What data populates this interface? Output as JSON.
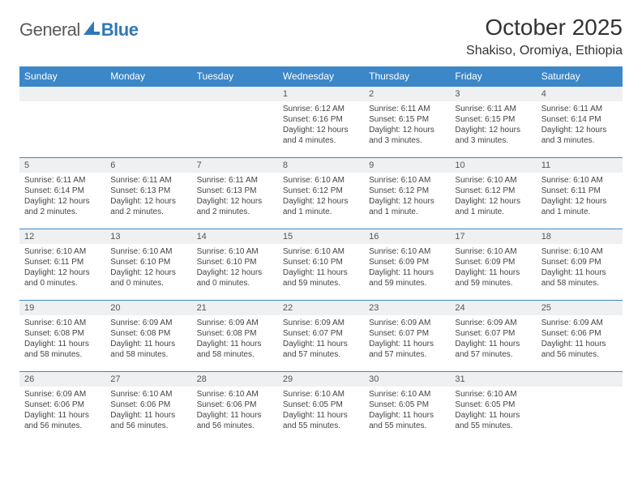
{
  "logo": {
    "part1": "General",
    "part2": "Blue",
    "brand_color": "#2f78b8"
  },
  "title": "October 2025",
  "location": "Shakiso, Oromiya, Ethiopia",
  "header_bg": "#3b87c8",
  "daynum_bg": "#eef0f2",
  "row_border": "#3b87c8",
  "weekdays": [
    "Sunday",
    "Monday",
    "Tuesday",
    "Wednesday",
    "Thursday",
    "Friday",
    "Saturday"
  ],
  "weeks": [
    [
      {
        "n": "",
        "sr": "",
        "ss": "",
        "dl": ""
      },
      {
        "n": "",
        "sr": "",
        "ss": "",
        "dl": ""
      },
      {
        "n": "",
        "sr": "",
        "ss": "",
        "dl": ""
      },
      {
        "n": "1",
        "sr": "Sunrise: 6:12 AM",
        "ss": "Sunset: 6:16 PM",
        "dl": "Daylight: 12 hours and 4 minutes."
      },
      {
        "n": "2",
        "sr": "Sunrise: 6:11 AM",
        "ss": "Sunset: 6:15 PM",
        "dl": "Daylight: 12 hours and 3 minutes."
      },
      {
        "n": "3",
        "sr": "Sunrise: 6:11 AM",
        "ss": "Sunset: 6:15 PM",
        "dl": "Daylight: 12 hours and 3 minutes."
      },
      {
        "n": "4",
        "sr": "Sunrise: 6:11 AM",
        "ss": "Sunset: 6:14 PM",
        "dl": "Daylight: 12 hours and 3 minutes."
      }
    ],
    [
      {
        "n": "5",
        "sr": "Sunrise: 6:11 AM",
        "ss": "Sunset: 6:14 PM",
        "dl": "Daylight: 12 hours and 2 minutes."
      },
      {
        "n": "6",
        "sr": "Sunrise: 6:11 AM",
        "ss": "Sunset: 6:13 PM",
        "dl": "Daylight: 12 hours and 2 minutes."
      },
      {
        "n": "7",
        "sr": "Sunrise: 6:11 AM",
        "ss": "Sunset: 6:13 PM",
        "dl": "Daylight: 12 hours and 2 minutes."
      },
      {
        "n": "8",
        "sr": "Sunrise: 6:10 AM",
        "ss": "Sunset: 6:12 PM",
        "dl": "Daylight: 12 hours and 1 minute."
      },
      {
        "n": "9",
        "sr": "Sunrise: 6:10 AM",
        "ss": "Sunset: 6:12 PM",
        "dl": "Daylight: 12 hours and 1 minute."
      },
      {
        "n": "10",
        "sr": "Sunrise: 6:10 AM",
        "ss": "Sunset: 6:12 PM",
        "dl": "Daylight: 12 hours and 1 minute."
      },
      {
        "n": "11",
        "sr": "Sunrise: 6:10 AM",
        "ss": "Sunset: 6:11 PM",
        "dl": "Daylight: 12 hours and 1 minute."
      }
    ],
    [
      {
        "n": "12",
        "sr": "Sunrise: 6:10 AM",
        "ss": "Sunset: 6:11 PM",
        "dl": "Daylight: 12 hours and 0 minutes."
      },
      {
        "n": "13",
        "sr": "Sunrise: 6:10 AM",
        "ss": "Sunset: 6:10 PM",
        "dl": "Daylight: 12 hours and 0 minutes."
      },
      {
        "n": "14",
        "sr": "Sunrise: 6:10 AM",
        "ss": "Sunset: 6:10 PM",
        "dl": "Daylight: 12 hours and 0 minutes."
      },
      {
        "n": "15",
        "sr": "Sunrise: 6:10 AM",
        "ss": "Sunset: 6:10 PM",
        "dl": "Daylight: 11 hours and 59 minutes."
      },
      {
        "n": "16",
        "sr": "Sunrise: 6:10 AM",
        "ss": "Sunset: 6:09 PM",
        "dl": "Daylight: 11 hours and 59 minutes."
      },
      {
        "n": "17",
        "sr": "Sunrise: 6:10 AM",
        "ss": "Sunset: 6:09 PM",
        "dl": "Daylight: 11 hours and 59 minutes."
      },
      {
        "n": "18",
        "sr": "Sunrise: 6:10 AM",
        "ss": "Sunset: 6:09 PM",
        "dl": "Daylight: 11 hours and 58 minutes."
      }
    ],
    [
      {
        "n": "19",
        "sr": "Sunrise: 6:10 AM",
        "ss": "Sunset: 6:08 PM",
        "dl": "Daylight: 11 hours and 58 minutes."
      },
      {
        "n": "20",
        "sr": "Sunrise: 6:09 AM",
        "ss": "Sunset: 6:08 PM",
        "dl": "Daylight: 11 hours and 58 minutes."
      },
      {
        "n": "21",
        "sr": "Sunrise: 6:09 AM",
        "ss": "Sunset: 6:08 PM",
        "dl": "Daylight: 11 hours and 58 minutes."
      },
      {
        "n": "22",
        "sr": "Sunrise: 6:09 AM",
        "ss": "Sunset: 6:07 PM",
        "dl": "Daylight: 11 hours and 57 minutes."
      },
      {
        "n": "23",
        "sr": "Sunrise: 6:09 AM",
        "ss": "Sunset: 6:07 PM",
        "dl": "Daylight: 11 hours and 57 minutes."
      },
      {
        "n": "24",
        "sr": "Sunrise: 6:09 AM",
        "ss": "Sunset: 6:07 PM",
        "dl": "Daylight: 11 hours and 57 minutes."
      },
      {
        "n": "25",
        "sr": "Sunrise: 6:09 AM",
        "ss": "Sunset: 6:06 PM",
        "dl": "Daylight: 11 hours and 56 minutes."
      }
    ],
    [
      {
        "n": "26",
        "sr": "Sunrise: 6:09 AM",
        "ss": "Sunset: 6:06 PM",
        "dl": "Daylight: 11 hours and 56 minutes."
      },
      {
        "n": "27",
        "sr": "Sunrise: 6:10 AM",
        "ss": "Sunset: 6:06 PM",
        "dl": "Daylight: 11 hours and 56 minutes."
      },
      {
        "n": "28",
        "sr": "Sunrise: 6:10 AM",
        "ss": "Sunset: 6:06 PM",
        "dl": "Daylight: 11 hours and 56 minutes."
      },
      {
        "n": "29",
        "sr": "Sunrise: 6:10 AM",
        "ss": "Sunset: 6:05 PM",
        "dl": "Daylight: 11 hours and 55 minutes."
      },
      {
        "n": "30",
        "sr": "Sunrise: 6:10 AM",
        "ss": "Sunset: 6:05 PM",
        "dl": "Daylight: 11 hours and 55 minutes."
      },
      {
        "n": "31",
        "sr": "Sunrise: 6:10 AM",
        "ss": "Sunset: 6:05 PM",
        "dl": "Daylight: 11 hours and 55 minutes."
      },
      {
        "n": "",
        "sr": "",
        "ss": "",
        "dl": ""
      }
    ]
  ]
}
